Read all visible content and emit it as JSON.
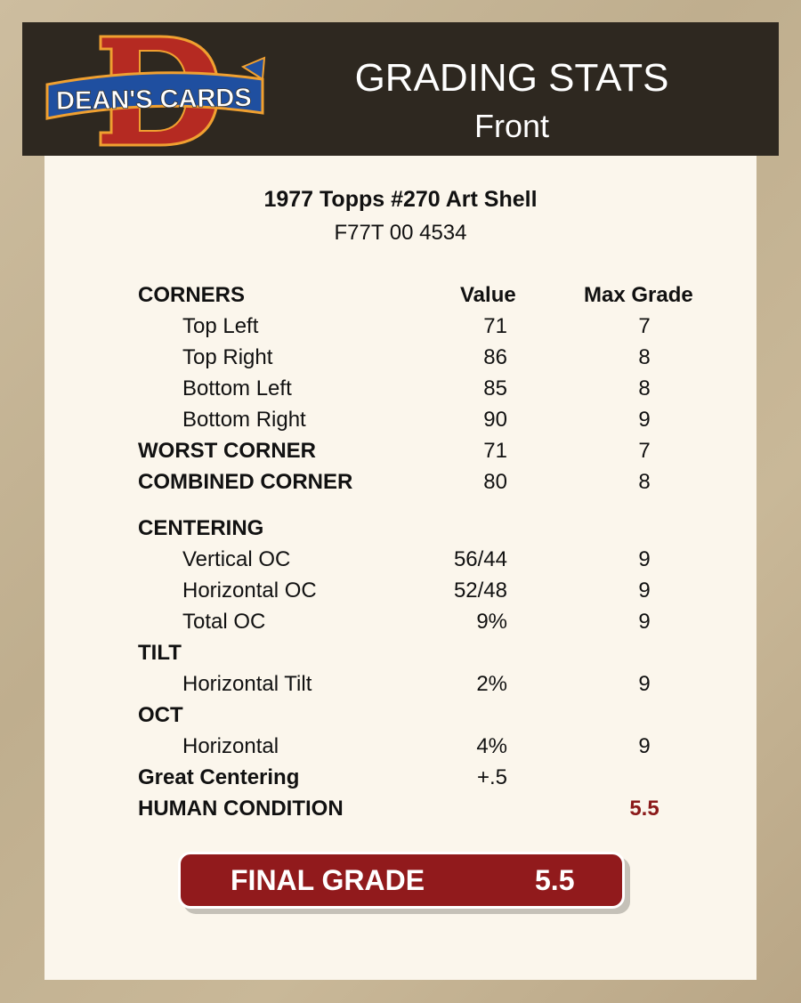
{
  "header": {
    "logo_text": "DEAN'S CARDS",
    "title": "GRADING STATS",
    "subtitle": "Front"
  },
  "card": {
    "name": "1977 Topps #270 Art Shell",
    "cert": "F77T 00 4534"
  },
  "columns": {
    "value": "Value",
    "max": "Max Grade"
  },
  "rows": [
    {
      "label": "CORNERS",
      "style": "bold",
      "value": "",
      "max": ""
    },
    {
      "label": "Top Left",
      "style": "indent",
      "value": "71",
      "max": "7"
    },
    {
      "label": "Top Right",
      "style": "indent",
      "value": "86",
      "max": "8"
    },
    {
      "label": "Bottom Left",
      "style": "indent",
      "value": "85",
      "max": "8"
    },
    {
      "label": "Bottom Right",
      "style": "indent",
      "value": "90",
      "max": "9"
    },
    {
      "label": "WORST CORNER",
      "style": "bold",
      "value": "71",
      "max": "7"
    },
    {
      "label": "COMBINED CORNER",
      "style": "bold",
      "value": "80",
      "max": "8"
    },
    {
      "label": "CENTERING",
      "style": "bold",
      "value": "",
      "max": ""
    },
    {
      "label": "Vertical OC",
      "style": "indent",
      "value": "56/44",
      "max": "9"
    },
    {
      "label": "Horizontal OC",
      "style": "indent",
      "value": "52/48",
      "max": "9"
    },
    {
      "label": "Total OC",
      "style": "indent",
      "value": "9%",
      "max": "9"
    },
    {
      "label": "TILT",
      "style": "bold",
      "value": "",
      "max": ""
    },
    {
      "label": "Horizontal Tilt",
      "style": "indent",
      "value": "2%",
      "max": "9"
    },
    {
      "label": "OCT",
      "style": "bold",
      "value": "",
      "max": ""
    },
    {
      "label": "Horizontal",
      "style": "indent",
      "value": "4%",
      "max": "9"
    },
    {
      "label": "Great Centering",
      "style": "bold",
      "value": "+.5",
      "max": ""
    },
    {
      "label": "HUMAN CONDITION",
      "style": "bold",
      "value": "",
      "max": "5.5",
      "max_color": "#8b1a1a"
    }
  ],
  "final": {
    "label": "FINAL GRADE",
    "value": "5.5",
    "color": "#911a1c"
  }
}
